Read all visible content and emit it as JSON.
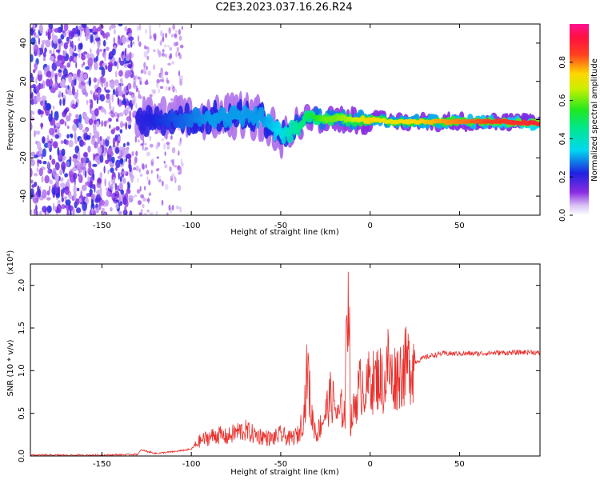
{
  "figure_title": "C2E3.2023.037.16.26.R24",
  "colors": {
    "snr_line": "#e8302c",
    "frame": "#000000",
    "grid": "#d8d8d8"
  },
  "chart_data": [
    {
      "type": "heatmap",
      "title": "C2E3.2023.037.16.26.R24",
      "xlabel": "Height of straight line (km)",
      "ylabel": "Frequency (Hz)",
      "xlim": [
        -190,
        95
      ],
      "ylim": [
        -50,
        50
      ],
      "xticks": [
        -150,
        -100,
        -50,
        0,
        50
      ],
      "yticks": [
        -40,
        -20,
        0,
        20,
        40
      ],
      "colorbar": {
        "label": "Normalized spectral amplitude",
        "range": [
          0.0,
          1.0
        ],
        "ticks": [
          0.0,
          0.2,
          0.4,
          0.6,
          0.8
        ],
        "tick_labels": [
          "0.0",
          "0.2",
          "0.4",
          "0.6",
          "0.8"
        ],
        "colormap": "rainbow (white/violet → blue → cyan → green → yellow → red → magenta)"
      },
      "ridge": {
        "description": "spectral ridge near 0 Hz",
        "x": [
          -130,
          -110,
          -90,
          -70,
          -60,
          -50,
          -40,
          -35,
          -30,
          -25,
          -20,
          -10,
          0,
          10,
          30,
          50,
          70,
          95
        ],
        "frequency_hz": [
          0,
          0,
          1,
          2,
          1,
          -8,
          -5,
          2,
          1,
          0,
          1,
          0,
          0,
          -1,
          -1,
          -1,
          -1,
          -2
        ],
        "amplitude": [
          0.2,
          0.25,
          0.3,
          0.3,
          0.3,
          0.35,
          0.45,
          0.5,
          0.55,
          0.6,
          0.6,
          0.65,
          0.75,
          0.7,
          0.75,
          0.8,
          0.85,
          0.9
        ]
      },
      "noise_region": {
        "x_range": [
          -190,
          -133
        ],
        "frequency_range": [
          -50,
          50
        ]
      }
    },
    {
      "type": "line",
      "xlabel": "Height of straight line (km)",
      "ylabel": "SNR (10 * v/v)",
      "y_scale_label": "(x10⁴)",
      "xlim": [
        -190,
        95
      ],
      "ylim": [
        0,
        2.25
      ],
      "xticks": [
        -150,
        -100,
        -50,
        0,
        50
      ],
      "yticks": [
        0.0,
        0.5,
        1.0,
        1.5,
        2.0
      ],
      "series": [
        {
          "x": [
            -190,
            -170,
            -150,
            -130,
            -128,
            -120,
            -110,
            -100,
            -95,
            -90,
            -85,
            -80,
            -75,
            -70,
            -65,
            -60,
            -55,
            -50,
            -45,
            -40,
            -37,
            -35,
            -33,
            -30,
            -28,
            -25,
            -22,
            -20,
            -18,
            -16,
            -14,
            -13,
            -12,
            -11,
            -10,
            -8,
            -6,
            -4,
            -2,
            0,
            2,
            5,
            8,
            10,
            12,
            15,
            18,
            20,
            25,
            30,
            35,
            40,
            50,
            60,
            70,
            80,
            90,
            95
          ],
          "values": [
            0.01,
            0.01,
            0.01,
            0.02,
            0.07,
            0.03,
            0.05,
            0.08,
            0.18,
            0.22,
            0.25,
            0.22,
            0.28,
            0.3,
            0.25,
            0.23,
            0.2,
            0.25,
            0.2,
            0.25,
            0.5,
            1.05,
            0.5,
            0.25,
            0.35,
            0.5,
            0.7,
            0.6,
            0.45,
            0.55,
            0.5,
            1.7,
            2.25,
            0.4,
            0.45,
            0.65,
            0.8,
            0.85,
            0.75,
            0.95,
            0.85,
            0.95,
            0.8,
            1.1,
            0.9,
            0.95,
            1.0,
            1.05,
            1.1,
            1.15,
            1.18,
            1.2,
            1.2,
            1.2,
            1.21,
            1.21,
            1.22,
            1.2
          ]
        }
      ]
    }
  ]
}
